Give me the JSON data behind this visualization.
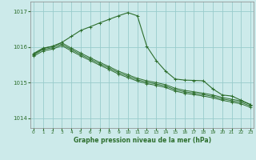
{
  "background_color": "#cceaea",
  "grid_color": "#99cccc",
  "line_color": "#2d6e2d",
  "xlabel": "Graphe pression niveau de la mer (hPa)",
  "ylabel_ticks": [
    1014,
    1015,
    1016,
    1017
  ],
  "xlim": [
    -0.3,
    23.3
  ],
  "ylim": [
    1013.72,
    1017.28
  ],
  "x_ticks": [
    0,
    1,
    2,
    3,
    4,
    5,
    6,
    7,
    8,
    9,
    10,
    11,
    12,
    13,
    14,
    15,
    16,
    17,
    18,
    19,
    20,
    21,
    22,
    23
  ],
  "series": [
    {
      "x": [
        0,
        1,
        2,
        3,
        4,
        5,
        6,
        7,
        8,
        9,
        10,
        11,
        12,
        13,
        14,
        15,
        16,
        17,
        18,
        19,
        20,
        21,
        22,
        23
      ],
      "y": [
        1015.82,
        1015.97,
        1016.02,
        1016.12,
        1015.97,
        1015.83,
        1015.7,
        1015.57,
        1015.45,
        1015.32,
        1015.22,
        1015.12,
        1015.05,
        1015.0,
        1014.94,
        1014.84,
        1014.78,
        1014.74,
        1014.7,
        1014.65,
        1014.58,
        1014.53,
        1014.48,
        1014.38
      ]
    },
    {
      "x": [
        0,
        1,
        2,
        3,
        4,
        5,
        6,
        7,
        8,
        9,
        10,
        11,
        12,
        13,
        14,
        15,
        16,
        17,
        18,
        19,
        20,
        21,
        22,
        23
      ],
      "y": [
        1015.78,
        1015.93,
        1015.98,
        1016.08,
        1015.93,
        1015.79,
        1015.66,
        1015.53,
        1015.41,
        1015.28,
        1015.18,
        1015.08,
        1015.01,
        1014.96,
        1014.9,
        1014.8,
        1014.74,
        1014.7,
        1014.66,
        1014.61,
        1014.54,
        1014.49,
        1014.44,
        1014.34
      ]
    },
    {
      "x": [
        0,
        1,
        2,
        3,
        4,
        5,
        6,
        7,
        8,
        9,
        10,
        11,
        12,
        13,
        14,
        15,
        16,
        17,
        18,
        19,
        20,
        21,
        22,
        23
      ],
      "y": [
        1015.74,
        1015.89,
        1015.94,
        1016.04,
        1015.89,
        1015.75,
        1015.62,
        1015.49,
        1015.37,
        1015.24,
        1015.14,
        1015.04,
        1014.97,
        1014.92,
        1014.86,
        1014.76,
        1014.7,
        1014.66,
        1014.62,
        1014.57,
        1014.5,
        1014.45,
        1014.4,
        1014.3
      ]
    }
  ],
  "main_series": {
    "x": [
      0,
      1,
      2,
      3,
      4,
      5,
      6,
      7,
      8,
      9,
      10,
      11,
      12,
      13,
      14,
      15,
      16,
      17,
      18,
      19,
      20,
      21,
      22,
      23
    ],
    "y": [
      1015.8,
      1015.96,
      1016.02,
      1016.13,
      1016.3,
      1016.47,
      1016.57,
      1016.68,
      1016.78,
      1016.88,
      1016.97,
      1016.88,
      1016.02,
      1015.62,
      1015.32,
      1015.1,
      1015.07,
      1015.06,
      1015.05,
      1014.82,
      1014.65,
      1014.62,
      1014.5,
      1014.38
    ]
  }
}
